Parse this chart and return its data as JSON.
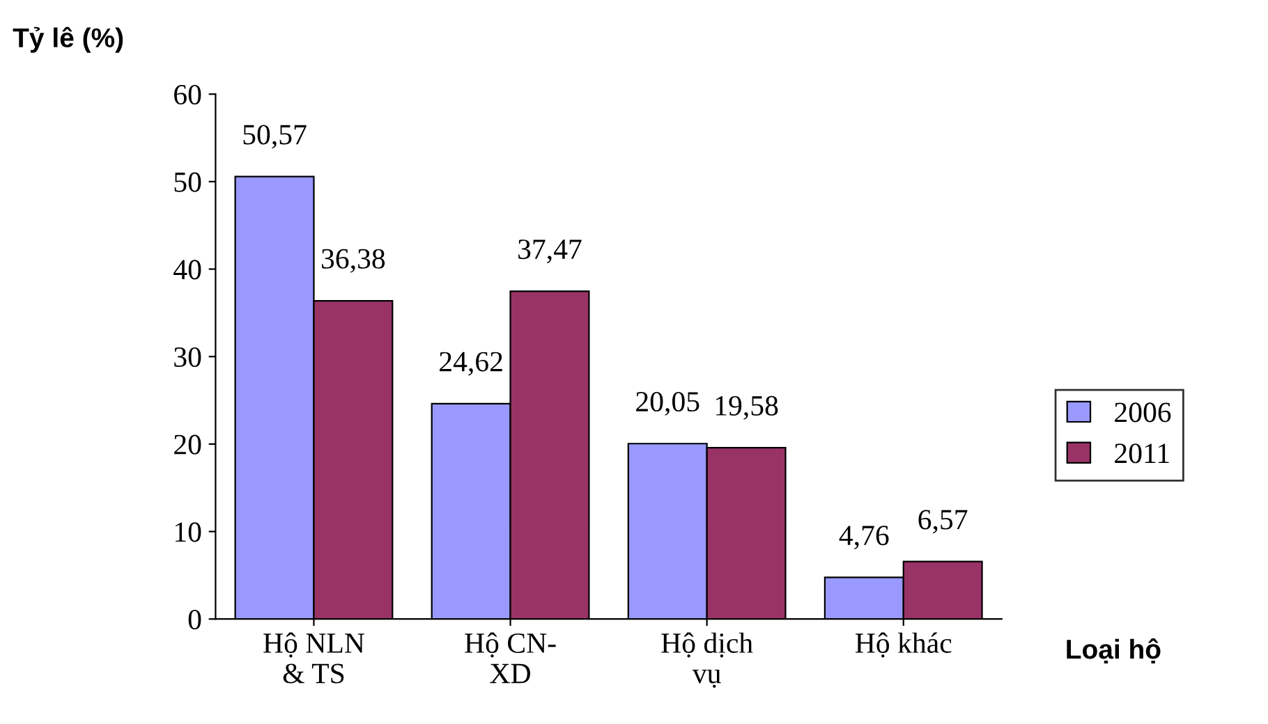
{
  "chart_data": {
    "type": "bar",
    "ylabel": "Tỷ lê (%)",
    "xlabel": "Loại hộ",
    "categories": [
      "Hộ NLN\n& TS",
      "Hộ CN-\nXD",
      "Hộ dịch\nvụ",
      "Hộ khác"
    ],
    "series": [
      {
        "name": "2006",
        "color": "#9999ff",
        "values": [
          50.57,
          24.62,
          20.05,
          4.76
        ],
        "value_labels": [
          "50,57",
          "24,62",
          "20,05",
          "4,76"
        ]
      },
      {
        "name": "2011",
        "color": "#993366",
        "values": [
          36.38,
          37.47,
          19.58,
          6.57
        ],
        "value_labels": [
          "36,38",
          "37,47",
          "19,58",
          "6,57"
        ]
      }
    ],
    "ylim": [
      0,
      60
    ],
    "yticks": [
      0,
      10,
      20,
      30,
      40,
      50,
      60
    ],
    "grid": false,
    "legend": "right"
  }
}
